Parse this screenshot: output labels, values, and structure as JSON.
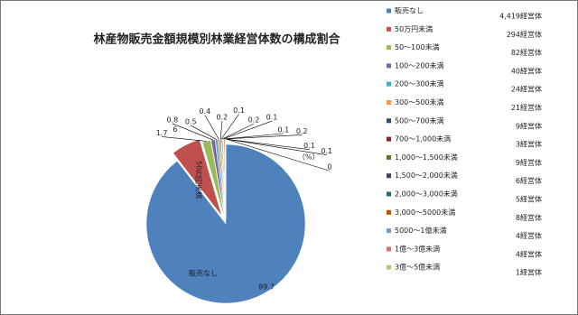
{
  "chart_data": {
    "type": "pie",
    "title": "林産物販売金額規模別林業経営体数の構成割合",
    "unit_note": "（%）",
    "categories": [
      "販売なし",
      "50万円未満",
      "50～100未満",
      "100～200未満",
      "200～300未満",
      "300～500未満",
      "500～700未満",
      "700～1,000未満",
      "1,000～1,500未満",
      "1,500～2,000未満",
      "2,000～3,000未満",
      "3,000～5000未満",
      "5000～1億未満",
      "1億～3億未満",
      "3億～5億未満"
    ],
    "values": [
      89.7,
      6,
      1.7,
      0.8,
      0.5,
      0.4,
      0.2,
      0.1,
      0.2,
      0.1,
      0.1,
      0.2,
      0.1,
      0.1,
      0
    ],
    "counts": [
      "4,419経営体",
      "294経営体",
      "82経営体",
      "40経営体",
      "24経営体",
      "21経営体",
      "9経営体",
      "3経営体",
      "9経営体",
      "6経営体",
      "5経営体",
      "8経営体",
      "4経営体",
      "4経営体",
      "1経営体"
    ],
    "colors": [
      "#4f81bd",
      "#c0504d",
      "#9bbb59",
      "#8064a2",
      "#4bacc6",
      "#f79646",
      "#2c4d75",
      "#772c2a",
      "#5f7530",
      "#4d3b62",
      "#276a7c",
      "#b65708",
      "#729aca",
      "#cd7371",
      "#afc97a"
    ]
  }
}
